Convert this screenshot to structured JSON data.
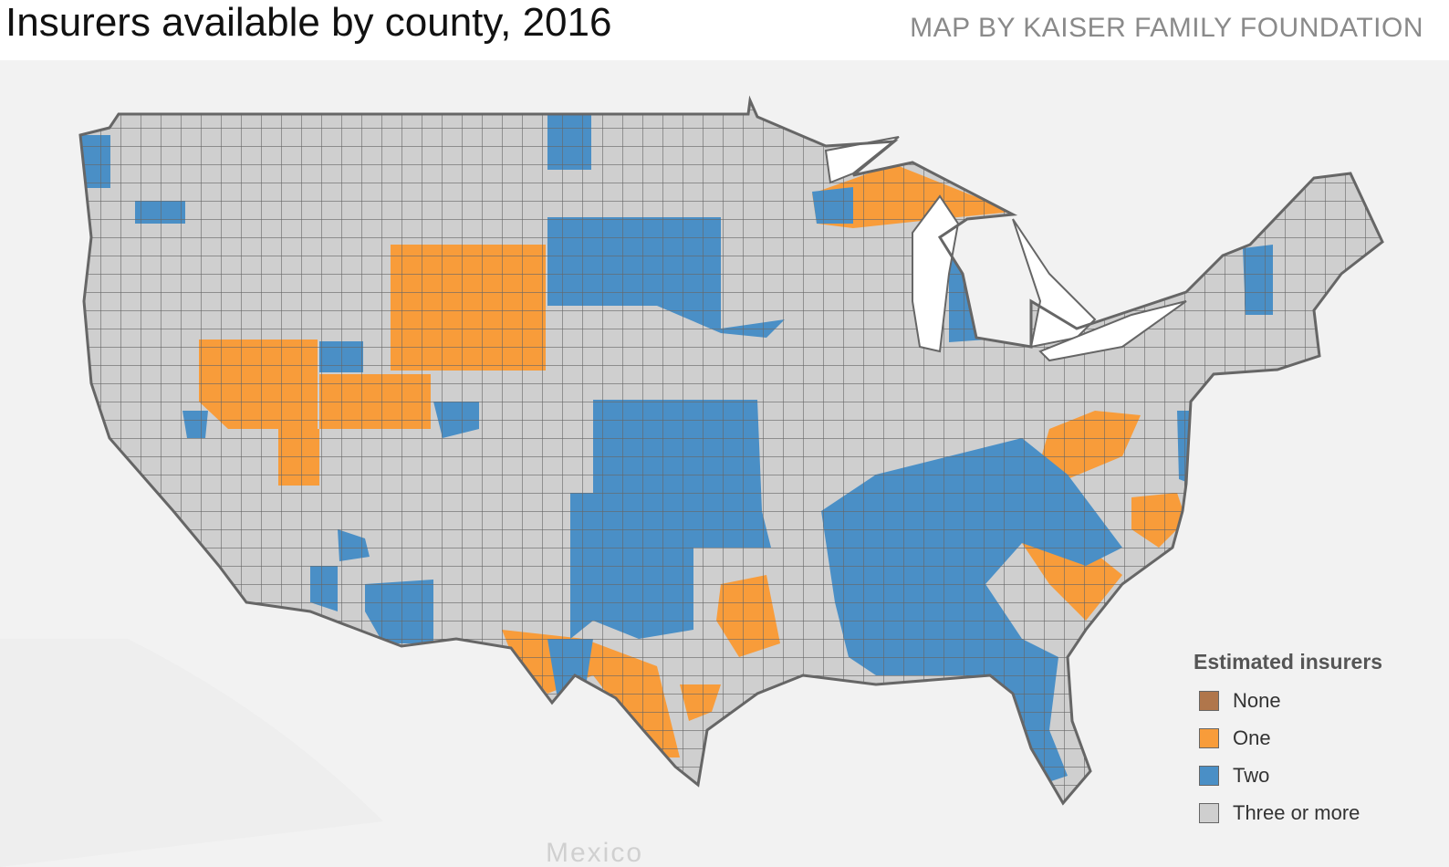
{
  "header": {
    "title": "Insurers available by county, 2016",
    "credit": "MAP BY KAISER FAMILY FOUNDATION"
  },
  "map": {
    "basemap_label": "Mexico",
    "colors": {
      "none": "#b0764b",
      "one": "#f89c3a",
      "two": "#4a8fc6",
      "three_or_more": "#cfcfcf",
      "border": "#666666",
      "water": "#ffffff",
      "basemap": "#f2f2f2"
    }
  },
  "legend": {
    "title": "Estimated insurers",
    "items": [
      {
        "label": "None",
        "color": "#b0764b"
      },
      {
        "label": "One",
        "color": "#f89c3a"
      },
      {
        "label": "Two",
        "color": "#4a8fc6"
      },
      {
        "label": "Three or more",
        "color": "#cfcfcf"
      }
    ]
  }
}
